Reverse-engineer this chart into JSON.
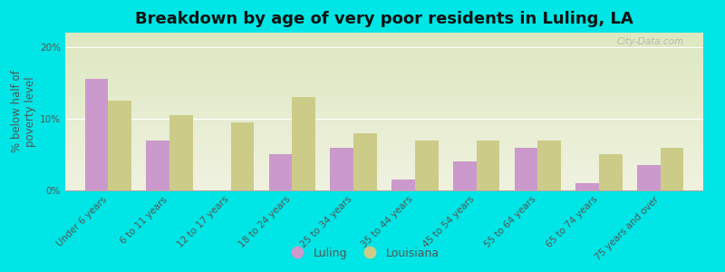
{
  "title": "Breakdown by age of very poor residents in Luling, LA",
  "ylabel": "% below half of\npoverty level",
  "categories": [
    "Under 6 years",
    "6 to 11 years",
    "12 to 17 years",
    "18 to 24 years",
    "25 to 34 years",
    "35 to 44 years",
    "45 to 54 years",
    "55 to 64 years",
    "65 to 74 years",
    "75 years and over"
  ],
  "luling_values": [
    15.5,
    7.0,
    0.0,
    5.0,
    6.0,
    1.5,
    4.0,
    6.0,
    1.0,
    3.5
  ],
  "louisiana_values": [
    12.5,
    10.5,
    9.5,
    13.0,
    8.0,
    7.0,
    7.0,
    7.0,
    5.0,
    6.0
  ],
  "luling_color": "#cc99cc",
  "louisiana_color": "#cccc88",
  "background_color": "#00e5e5",
  "plot_bg_top": "#dde8c0",
  "plot_bg_bottom": "#f0f2e0",
  "ylim": [
    0,
    22
  ],
  "yticks": [
    0,
    10,
    20
  ],
  "ytick_labels": [
    "0%",
    "10%",
    "20%"
  ],
  "bar_width": 0.38,
  "title_fontsize": 13,
  "ylabel_fontsize": 8.5,
  "tick_fontsize": 7.5,
  "legend_fontsize": 9,
  "watermark_text": "City-Data.com"
}
